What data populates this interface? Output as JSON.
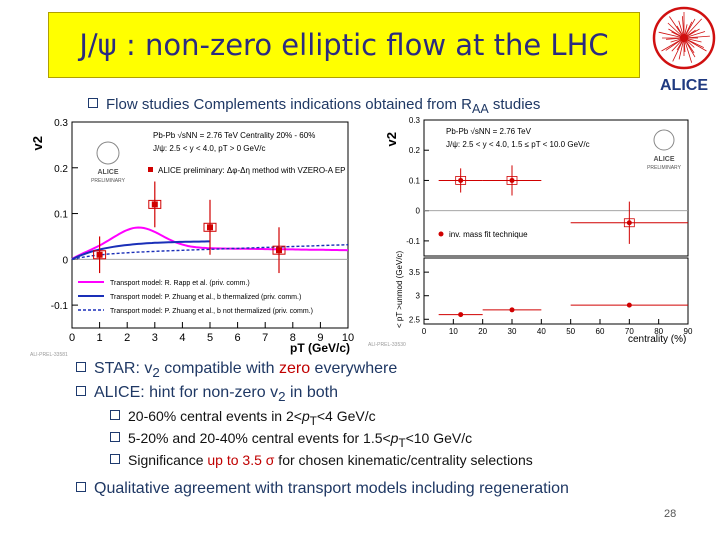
{
  "title": "J/ψ : non-zero elliptic flow at the LHC",
  "logo_text": "ALICE",
  "bullet_flow": {
    "pre": "Flow studies Complements indications obtained from R",
    "sub": "AA",
    "post": " studies"
  },
  "left_plot": {
    "y_label": "v2",
    "x_label": "pT (GeV/c)",
    "y_ticks": [
      "0.3",
      "0.2",
      "0.1",
      "0",
      "-0.1"
    ],
    "x_ticks": [
      "0",
      "1",
      "2",
      "3",
      "4",
      "5",
      "6",
      "7",
      "8",
      "9",
      "10"
    ],
    "header_lines": [
      "Pb-Pb √sNN = 2.76 TeV Centrality 20% - 60%",
      "J/ψ: 2.5 < y < 4.0, pT > 0 GeV/c"
    ],
    "series_label": "ALICE preliminary: Δφ-Δη method with VZERO-A EP",
    "badge": [
      "ALICE",
      "PRELIMINARY"
    ],
    "legend": [
      "Transport model: R. Rapp et al. (priv. comm.)",
      "Transport model: P. Zhuang et al., b thermalized (priv. comm.)",
      "Transport model: P. Zhuang et al., b not thermalized (priv. comm.)"
    ],
    "footnote": "ALI-PREL-33581",
    "points": [
      {
        "x": 1.0,
        "y": 0.01,
        "err": 0.04
      },
      {
        "x": 3.0,
        "y": 0.12,
        "err": 0.05
      },
      {
        "x": 5.0,
        "y": 0.07,
        "err": 0.06
      },
      {
        "x": 7.5,
        "y": 0.02,
        "err": 0.05
      }
    ]
  },
  "right_plot": {
    "y_label": "v2",
    "y_label_bottom": "< pT >unmod (GeV/c)",
    "x_label": "centrality (%)",
    "y_ticks_top": [
      "0.3",
      "0.2",
      "0.1",
      "0",
      "-0.1"
    ],
    "y_ticks_bottom": [
      "3.5",
      "3",
      "2.5"
    ],
    "x_ticks": [
      "0",
      "10",
      "20",
      "30",
      "40",
      "50",
      "60",
      "70",
      "80",
      "90"
    ],
    "header_lines": [
      "Pb-Pb √sNN = 2.76 TeV",
      "J/ψ: 2.5 < y < 4.0, 1.5 ≤ pT < 10.0 GeV/c"
    ],
    "series_label": "inv. mass fit technique",
    "badge": [
      "ALICE",
      "PRELIMINARY"
    ],
    "footnote": "ALI-PREL-33530",
    "points_top": [
      {
        "x": 12.5,
        "y": 0.1,
        "err": 0.04
      },
      {
        "x": 30,
        "y": 0.1,
        "err": 0.05
      },
      {
        "x": 70,
        "y": -0.04,
        "err": 0.07
      }
    ],
    "points_bottom": [
      {
        "x": 12.5,
        "y": 2.6
      },
      {
        "x": 30,
        "y": 2.7
      },
      {
        "x": 70,
        "y": 2.8
      }
    ]
  },
  "bullets": {
    "star": {
      "pre": "STAR: v",
      "sub": "2",
      "mid": " compatible with ",
      "hl": "zero",
      "post": " everywhere"
    },
    "alice": {
      "pre": "ALICE: hint for non-zero v",
      "sub": "2",
      "post": " in both"
    },
    "sub1": {
      "pre": "20-60% central events in 2<",
      "i": "p",
      "sub": "T",
      "post": "<4 GeV/c"
    },
    "sub2": {
      "pre": "5-20% and 20-40% central events for 1.5<",
      "i": "p",
      "sub": "T",
      "post": "<10 GeV/c"
    },
    "sub3": {
      "pre": "Significance ",
      "hl": "up to 3.5",
      "sym": "σ",
      "post": " for chosen kinematic/centrality selections"
    },
    "qualitative": "Qualitative agreement with transport models including regeneration"
  },
  "page_number": "28",
  "colors": {
    "title_bg": "#ffff00",
    "title_text": "#2b2b80",
    "bullet_text": "#1f3864",
    "data_red": "#d00000",
    "highlight": "#c00000"
  }
}
